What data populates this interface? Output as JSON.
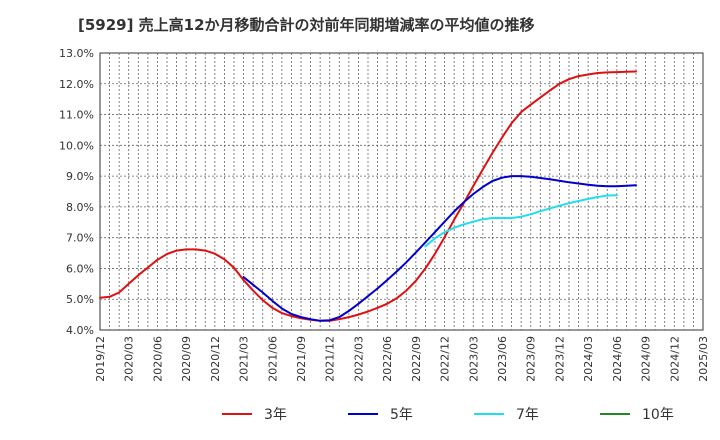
{
  "chart_data": {
    "type": "line",
    "title": "[5929]  売上高12か月移動合計の対前年同期増減率の平均値の推移",
    "xlabel": "",
    "ylabel": "",
    "ylim": [
      4.0,
      13.0
    ],
    "y_ticks": [
      "4.0%",
      "5.0%",
      "6.0%",
      "7.0%",
      "8.0%",
      "9.0%",
      "10.0%",
      "11.0%",
      "12.0%",
      "13.0%"
    ],
    "x_ticks": [
      "2019/12",
      "2020/03",
      "2020/06",
      "2020/09",
      "2020/12",
      "2021/03",
      "2021/06",
      "2021/09",
      "2021/12",
      "2022/03",
      "2022/06",
      "2022/09",
      "2022/12",
      "2023/03",
      "2023/06",
      "2023/09",
      "2023/12",
      "2024/03",
      "2024/06",
      "2024/09",
      "2024/12",
      "2025/03"
    ],
    "grid": true,
    "legend_position": "bottom",
    "series": [
      {
        "name": "3年",
        "color": "#dd1111",
        "points": [
          [
            "2019/12",
            5.05
          ],
          [
            "2020/01",
            5.08
          ],
          [
            "2020/02",
            5.22
          ],
          [
            "2020/03",
            5.5
          ],
          [
            "2020/04",
            5.78
          ],
          [
            "2020/05",
            6.03
          ],
          [
            "2020/06",
            6.28
          ],
          [
            "2020/07",
            6.47
          ],
          [
            "2020/08",
            6.58
          ],
          [
            "2020/09",
            6.62
          ],
          [
            "2020/10",
            6.62
          ],
          [
            "2020/11",
            6.58
          ],
          [
            "2020/12",
            6.48
          ],
          [
            "2021/01",
            6.3
          ],
          [
            "2021/02",
            6.02
          ],
          [
            "2021/03",
            5.62
          ],
          [
            "2021/04",
            5.28
          ],
          [
            "2021/05",
            4.97
          ],
          [
            "2021/06",
            4.72
          ],
          [
            "2021/07",
            4.55
          ],
          [
            "2021/08",
            4.45
          ],
          [
            "2021/09",
            4.38
          ],
          [
            "2021/10",
            4.33
          ],
          [
            "2021/11",
            4.3
          ],
          [
            "2021/12",
            4.3
          ],
          [
            "2022/01",
            4.35
          ],
          [
            "2022/02",
            4.42
          ],
          [
            "2022/03",
            4.5
          ],
          [
            "2022/04",
            4.6
          ],
          [
            "2022/05",
            4.72
          ],
          [
            "2022/06",
            4.85
          ],
          [
            "2022/07",
            5.03
          ],
          [
            "2022/08",
            5.28
          ],
          [
            "2022/09",
            5.6
          ],
          [
            "2022/10",
            6.0
          ],
          [
            "2022/11",
            6.48
          ],
          [
            "2022/12",
            7.02
          ],
          [
            "2023/01",
            7.58
          ],
          [
            "2023/02",
            8.12
          ],
          [
            "2023/03",
            8.68
          ],
          [
            "2023/04",
            9.22
          ],
          [
            "2023/05",
            9.75
          ],
          [
            "2023/06",
            10.25
          ],
          [
            "2023/07",
            10.72
          ],
          [
            "2023/08",
            11.08
          ],
          [
            "2023/09",
            11.32
          ],
          [
            "2023/10",
            11.55
          ],
          [
            "2023/11",
            11.78
          ],
          [
            "2023/12",
            12.0
          ],
          [
            "2024/01",
            12.15
          ],
          [
            "2024/02",
            12.25
          ],
          [
            "2024/03",
            12.3
          ],
          [
            "2024/04",
            12.35
          ],
          [
            "2024/05",
            12.37
          ],
          [
            "2024/06",
            12.38
          ],
          [
            "2024/07",
            12.39
          ],
          [
            "2024/08",
            12.4
          ]
        ]
      },
      {
        "name": "5年",
        "color": "#0000cc",
        "points": [
          [
            "2021/03",
            5.72
          ],
          [
            "2021/04",
            5.47
          ],
          [
            "2021/05",
            5.22
          ],
          [
            "2021/06",
            4.95
          ],
          [
            "2021/07",
            4.7
          ],
          [
            "2021/08",
            4.52
          ],
          [
            "2021/09",
            4.42
          ],
          [
            "2021/10",
            4.35
          ],
          [
            "2021/11",
            4.3
          ],
          [
            "2021/12",
            4.32
          ],
          [
            "2022/01",
            4.42
          ],
          [
            "2022/02",
            4.62
          ],
          [
            "2022/03",
            4.85
          ],
          [
            "2022/04",
            5.1
          ],
          [
            "2022/05",
            5.35
          ],
          [
            "2022/06",
            5.62
          ],
          [
            "2022/07",
            5.9
          ],
          [
            "2022/08",
            6.2
          ],
          [
            "2022/09",
            6.52
          ],
          [
            "2022/10",
            6.85
          ],
          [
            "2022/11",
            7.18
          ],
          [
            "2022/12",
            7.52
          ],
          [
            "2023/01",
            7.85
          ],
          [
            "2023/02",
            8.15
          ],
          [
            "2023/03",
            8.42
          ],
          [
            "2023/04",
            8.65
          ],
          [
            "2023/05",
            8.84
          ],
          [
            "2023/06",
            8.95
          ],
          [
            "2023/07",
            9.0
          ],
          [
            "2023/08",
            9.0
          ],
          [
            "2023/09",
            8.98
          ],
          [
            "2023/10",
            8.94
          ],
          [
            "2023/11",
            8.9
          ],
          [
            "2023/12",
            8.85
          ],
          [
            "2024/01",
            8.8
          ],
          [
            "2024/02",
            8.76
          ],
          [
            "2024/03",
            8.72
          ],
          [
            "2024/04",
            8.69
          ],
          [
            "2024/05",
            8.67
          ],
          [
            "2024/06",
            8.67
          ],
          [
            "2024/07",
            8.69
          ],
          [
            "2024/08",
            8.7
          ]
        ]
      },
      {
        "name": "7年",
        "color": "#22ddee",
        "points": [
          [
            "2022/10",
            6.72
          ],
          [
            "2022/11",
            6.98
          ],
          [
            "2022/12",
            7.18
          ],
          [
            "2023/01",
            7.32
          ],
          [
            "2023/02",
            7.43
          ],
          [
            "2023/03",
            7.52
          ],
          [
            "2023/04",
            7.6
          ],
          [
            "2023/05",
            7.64
          ],
          [
            "2023/06",
            7.64
          ],
          [
            "2023/07",
            7.64
          ],
          [
            "2023/08",
            7.68
          ],
          [
            "2023/09",
            7.76
          ],
          [
            "2023/10",
            7.86
          ],
          [
            "2023/11",
            7.95
          ],
          [
            "2023/12",
            8.04
          ],
          [
            "2024/01",
            8.12
          ],
          [
            "2024/02",
            8.19
          ],
          [
            "2024/03",
            8.26
          ],
          [
            "2024/04",
            8.32
          ],
          [
            "2024/05",
            8.37
          ],
          [
            "2024/06",
            8.38
          ]
        ]
      },
      {
        "name": "10年",
        "color": "#228822",
        "points": []
      }
    ]
  }
}
